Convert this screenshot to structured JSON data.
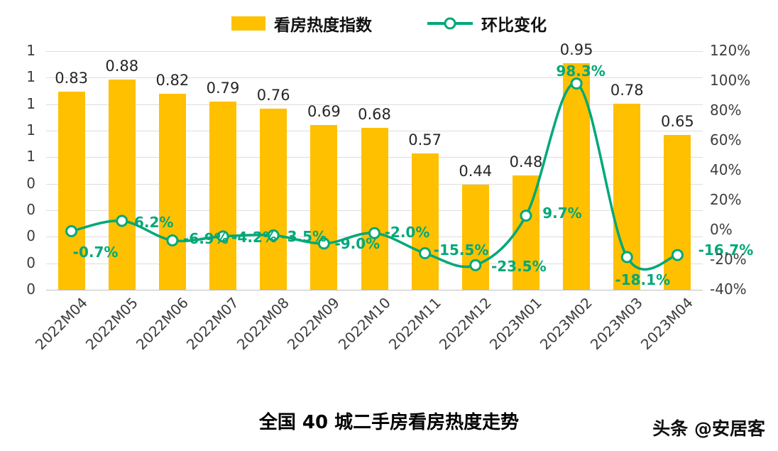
{
  "legend": {
    "bar_label": "看房热度指数",
    "line_label": "环比变化"
  },
  "watermark": "头条 @安居客",
  "colors": {
    "bar": "#FFC000",
    "line": "#00A878",
    "line_label": "#00A878",
    "grid": "#DDDDDD"
  },
  "chart_data": {
    "type": "bar+line",
    "title": "全国 40 城二手房看房热度走势",
    "legend_position": "top",
    "grid": true,
    "categories": [
      "2022M04",
      "2022M05",
      "2022M06",
      "2022M07",
      "2022M08",
      "2022M09",
      "2022M10",
      "2022M11",
      "2022M12",
      "2023M01",
      "2023M02",
      "2023M03",
      "2023M04"
    ],
    "series": [
      {
        "name": "看房热度指数",
        "type": "bar",
        "axis": "left",
        "values": [
          0.83,
          0.88,
          0.82,
          0.79,
          0.76,
          0.69,
          0.68,
          0.57,
          0.44,
          0.48,
          0.95,
          0.78,
          0.65
        ],
        "labels": [
          "0.83",
          "0.88",
          "0.82",
          "0.79",
          "0.76",
          "0.69",
          "0.68",
          "0.57",
          "0.44",
          "0.48",
          "0.95",
          "0.78",
          "0.65"
        ]
      },
      {
        "name": "环比变化",
        "type": "line",
        "axis": "right",
        "values": [
          -0.7,
          6.2,
          -6.9,
          -4.2,
          -3.5,
          -9.0,
          -2.0,
          -15.5,
          -23.5,
          9.7,
          98.3,
          -18.1,
          -16.7
        ],
        "labels": [
          "-0.7%",
          "6.2%",
          "-6.9%",
          "-4.2%",
          "-3.5%",
          "-9.0%",
          "-2.0%",
          "-15.5%",
          "-23.5%",
          "9.7%",
          "98.3%",
          "-18.1%",
          "-16.7%"
        ]
      }
    ],
    "left_axis": {
      "min": 0,
      "max": 1,
      "ticks": [
        "1",
        "1",
        "1",
        "1",
        "1",
        "0",
        "0",
        "0",
        "0",
        "0"
      ]
    },
    "right_axis": {
      "min": -40,
      "max": 120,
      "ticks": [
        "120%",
        "100%",
        "80%",
        "60%",
        "40%",
        "20%",
        "0%",
        "-20%",
        "-40%"
      ]
    }
  }
}
